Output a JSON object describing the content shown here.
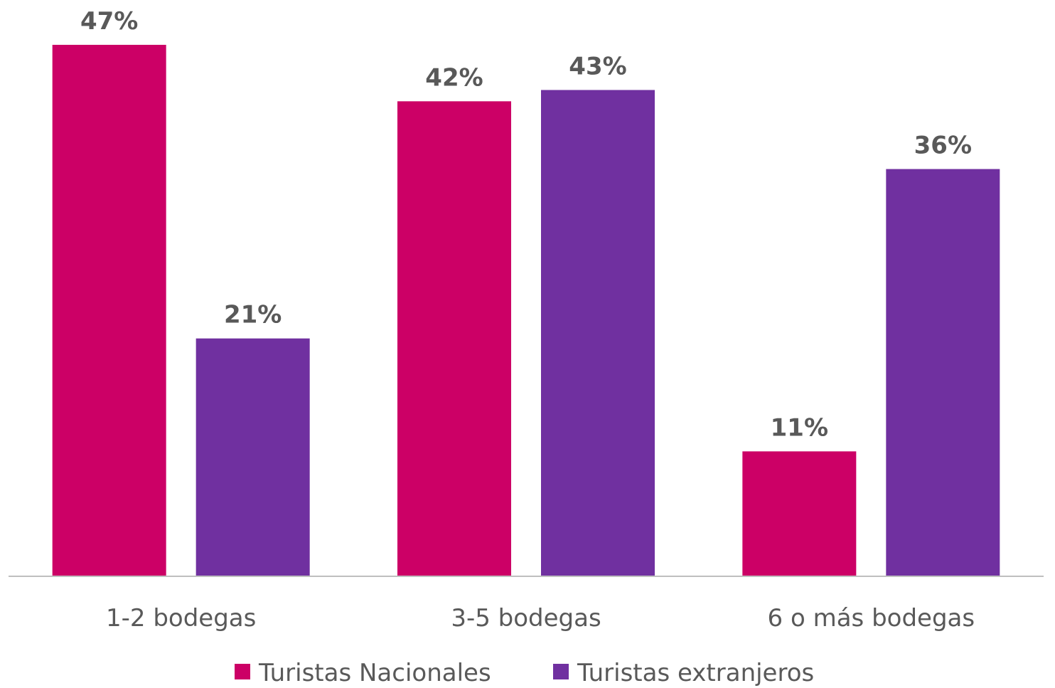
{
  "chart_data": {
    "type": "bar",
    "categories": [
      "1-2 bodegas",
      "3-5 bodegas",
      "6 o más bodegas"
    ],
    "series": [
      {
        "name": "Turistas Nacionales",
        "color": "#cc0066",
        "values": [
          47,
          42,
          11
        ],
        "value_labels": [
          "47%",
          "42%",
          "11%"
        ]
      },
      {
        "name": "Turistas extranjeros",
        "color": "#7030a0",
        "values": [
          21,
          43,
          36
        ],
        "value_labels": [
          "21%",
          "43%",
          "36%"
        ]
      }
    ],
    "legend": "bottom"
  }
}
